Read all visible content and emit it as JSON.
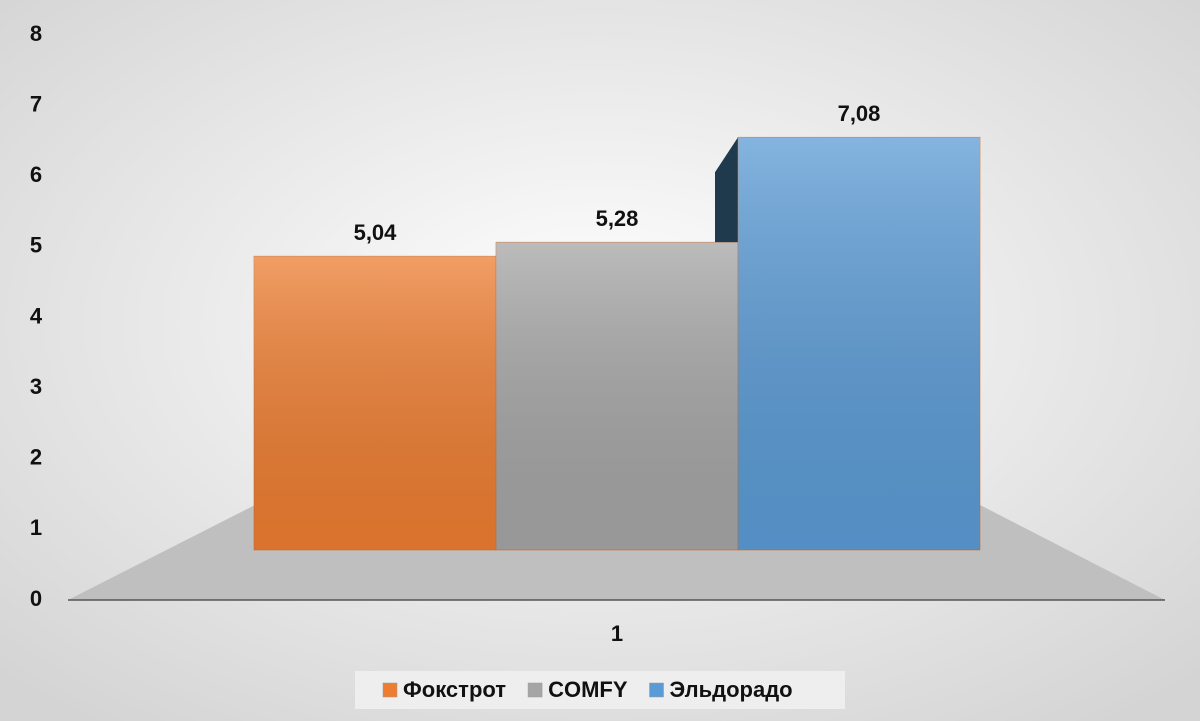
{
  "chart_data": {
    "type": "bar3d",
    "categories": [
      "1"
    ],
    "series": [
      {
        "name": "Фокстрот",
        "color": "#ed7d31",
        "values": [
          5.04
        ],
        "value_labels": [
          "5,04"
        ]
      },
      {
        "name": "COMFY",
        "color": "#a5a5a5",
        "values": [
          5.28
        ],
        "value_labels": [
          "5,28"
        ]
      },
      {
        "name": "Эльдорадо",
        "color": "#5b9bd5",
        "values": [
          7.08
        ],
        "value_labels": [
          "7,08"
        ]
      }
    ],
    "ylim": [
      0,
      8
    ],
    "yticks": [
      0,
      1,
      2,
      3,
      4,
      5,
      6,
      7,
      8
    ],
    "legend": "bottom"
  }
}
